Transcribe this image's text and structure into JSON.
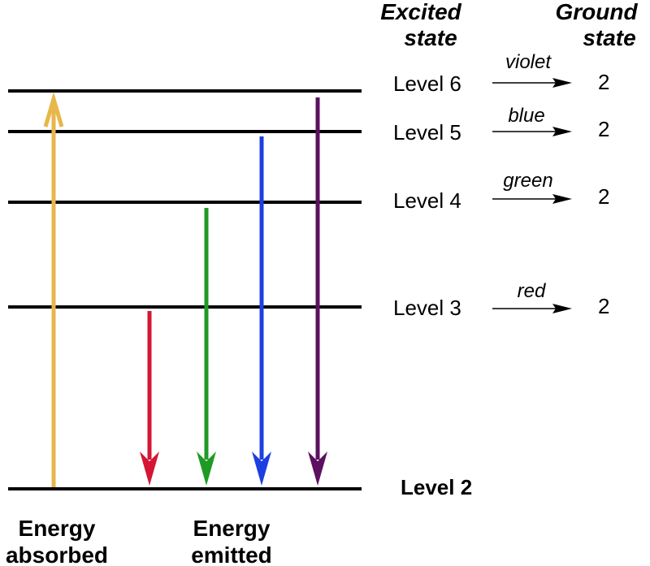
{
  "headers": {
    "excited": [
      "Excited",
      "state"
    ],
    "ground": [
      "Ground",
      "state"
    ]
  },
  "levels": [
    {
      "label": "Level 6",
      "color_name": "violet",
      "target": "2",
      "color": "#8a1a6e"
    },
    {
      "label": "Level 5",
      "color_name": "blue",
      "target": "2",
      "color": "#2346d6"
    },
    {
      "label": "Level 4",
      "color_name": "green",
      "target": "2",
      "color": "#1d9a2a"
    },
    {
      "label": "Level 3",
      "color_name": "red",
      "target": "2",
      "color": "#c8143c"
    }
  ],
  "ground_level": "Level 2",
  "absorbed_label": [
    "Energy",
    "absorbed"
  ],
  "emitted_label": [
    "Energy",
    "emitted"
  ],
  "colors": {
    "absorbed": "#e8b64a",
    "red": "#d41634",
    "green": "#1f9a24",
    "blue": "#1c3fe0",
    "violet": "#5c1060",
    "line": "#000000"
  }
}
